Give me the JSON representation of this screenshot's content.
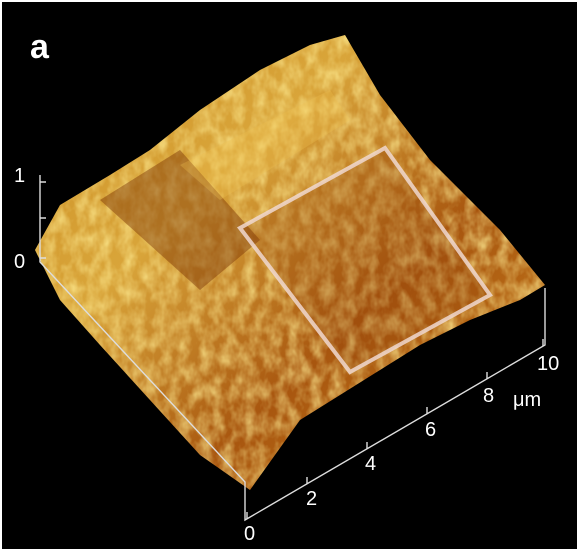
{
  "panel_label": "a",
  "z_axis": {
    "ticks": [
      "1",
      "0"
    ]
  },
  "x_axis": {
    "ticks": [
      "0",
      "2",
      "4",
      "6",
      "8",
      "10"
    ],
    "unit": "μm"
  }
}
